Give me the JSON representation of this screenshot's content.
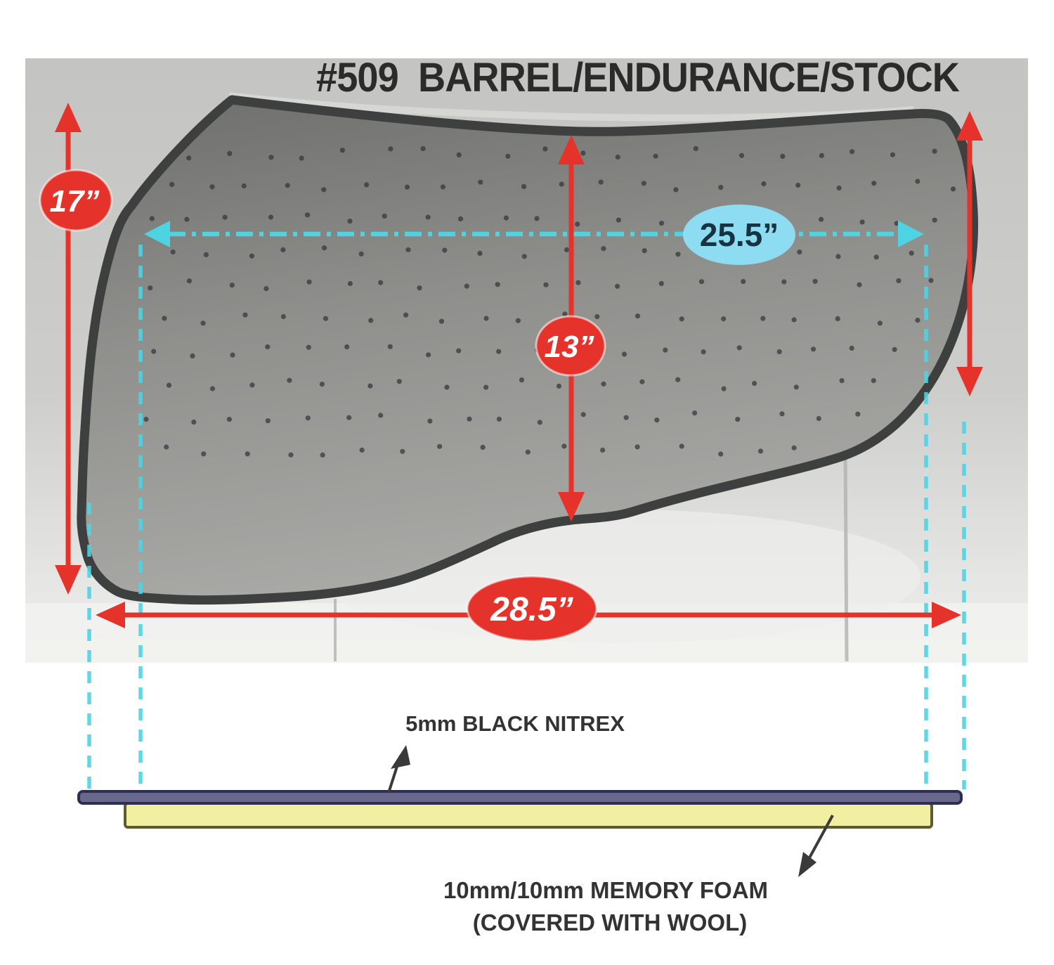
{
  "title": "#509  BARREL/ENDURANCE/STOCK",
  "measurements": {
    "left_height": "17”",
    "top_width": "25.5”",
    "mid_height": "13”",
    "bottom_width": "28.5”"
  },
  "layers": {
    "nitrex_label": "5mm BLACK NITREX",
    "foam_label_line1": "10mm/10mm MEMORY FOAM",
    "foam_label_line2": "(COVERED WITH WOOL)"
  },
  "colors": {
    "dimension_red": "#e5322a",
    "dimension_cyan": "#4ed3e3",
    "blue_badge_fill": "#8edcf2",
    "blue_badge_text": "#17333f",
    "title_text": "#2b2b2b",
    "nitrex_layer_fill": "#68688c",
    "nitrex_layer_border": "#2e2e50",
    "foam_layer_fill": "#f2efa3",
    "foam_layer_border": "#5c5c34",
    "pad_fill": "#8a8a88",
    "pad_edge": "#3d403e",
    "photo_background": "#c9c9c7"
  }
}
